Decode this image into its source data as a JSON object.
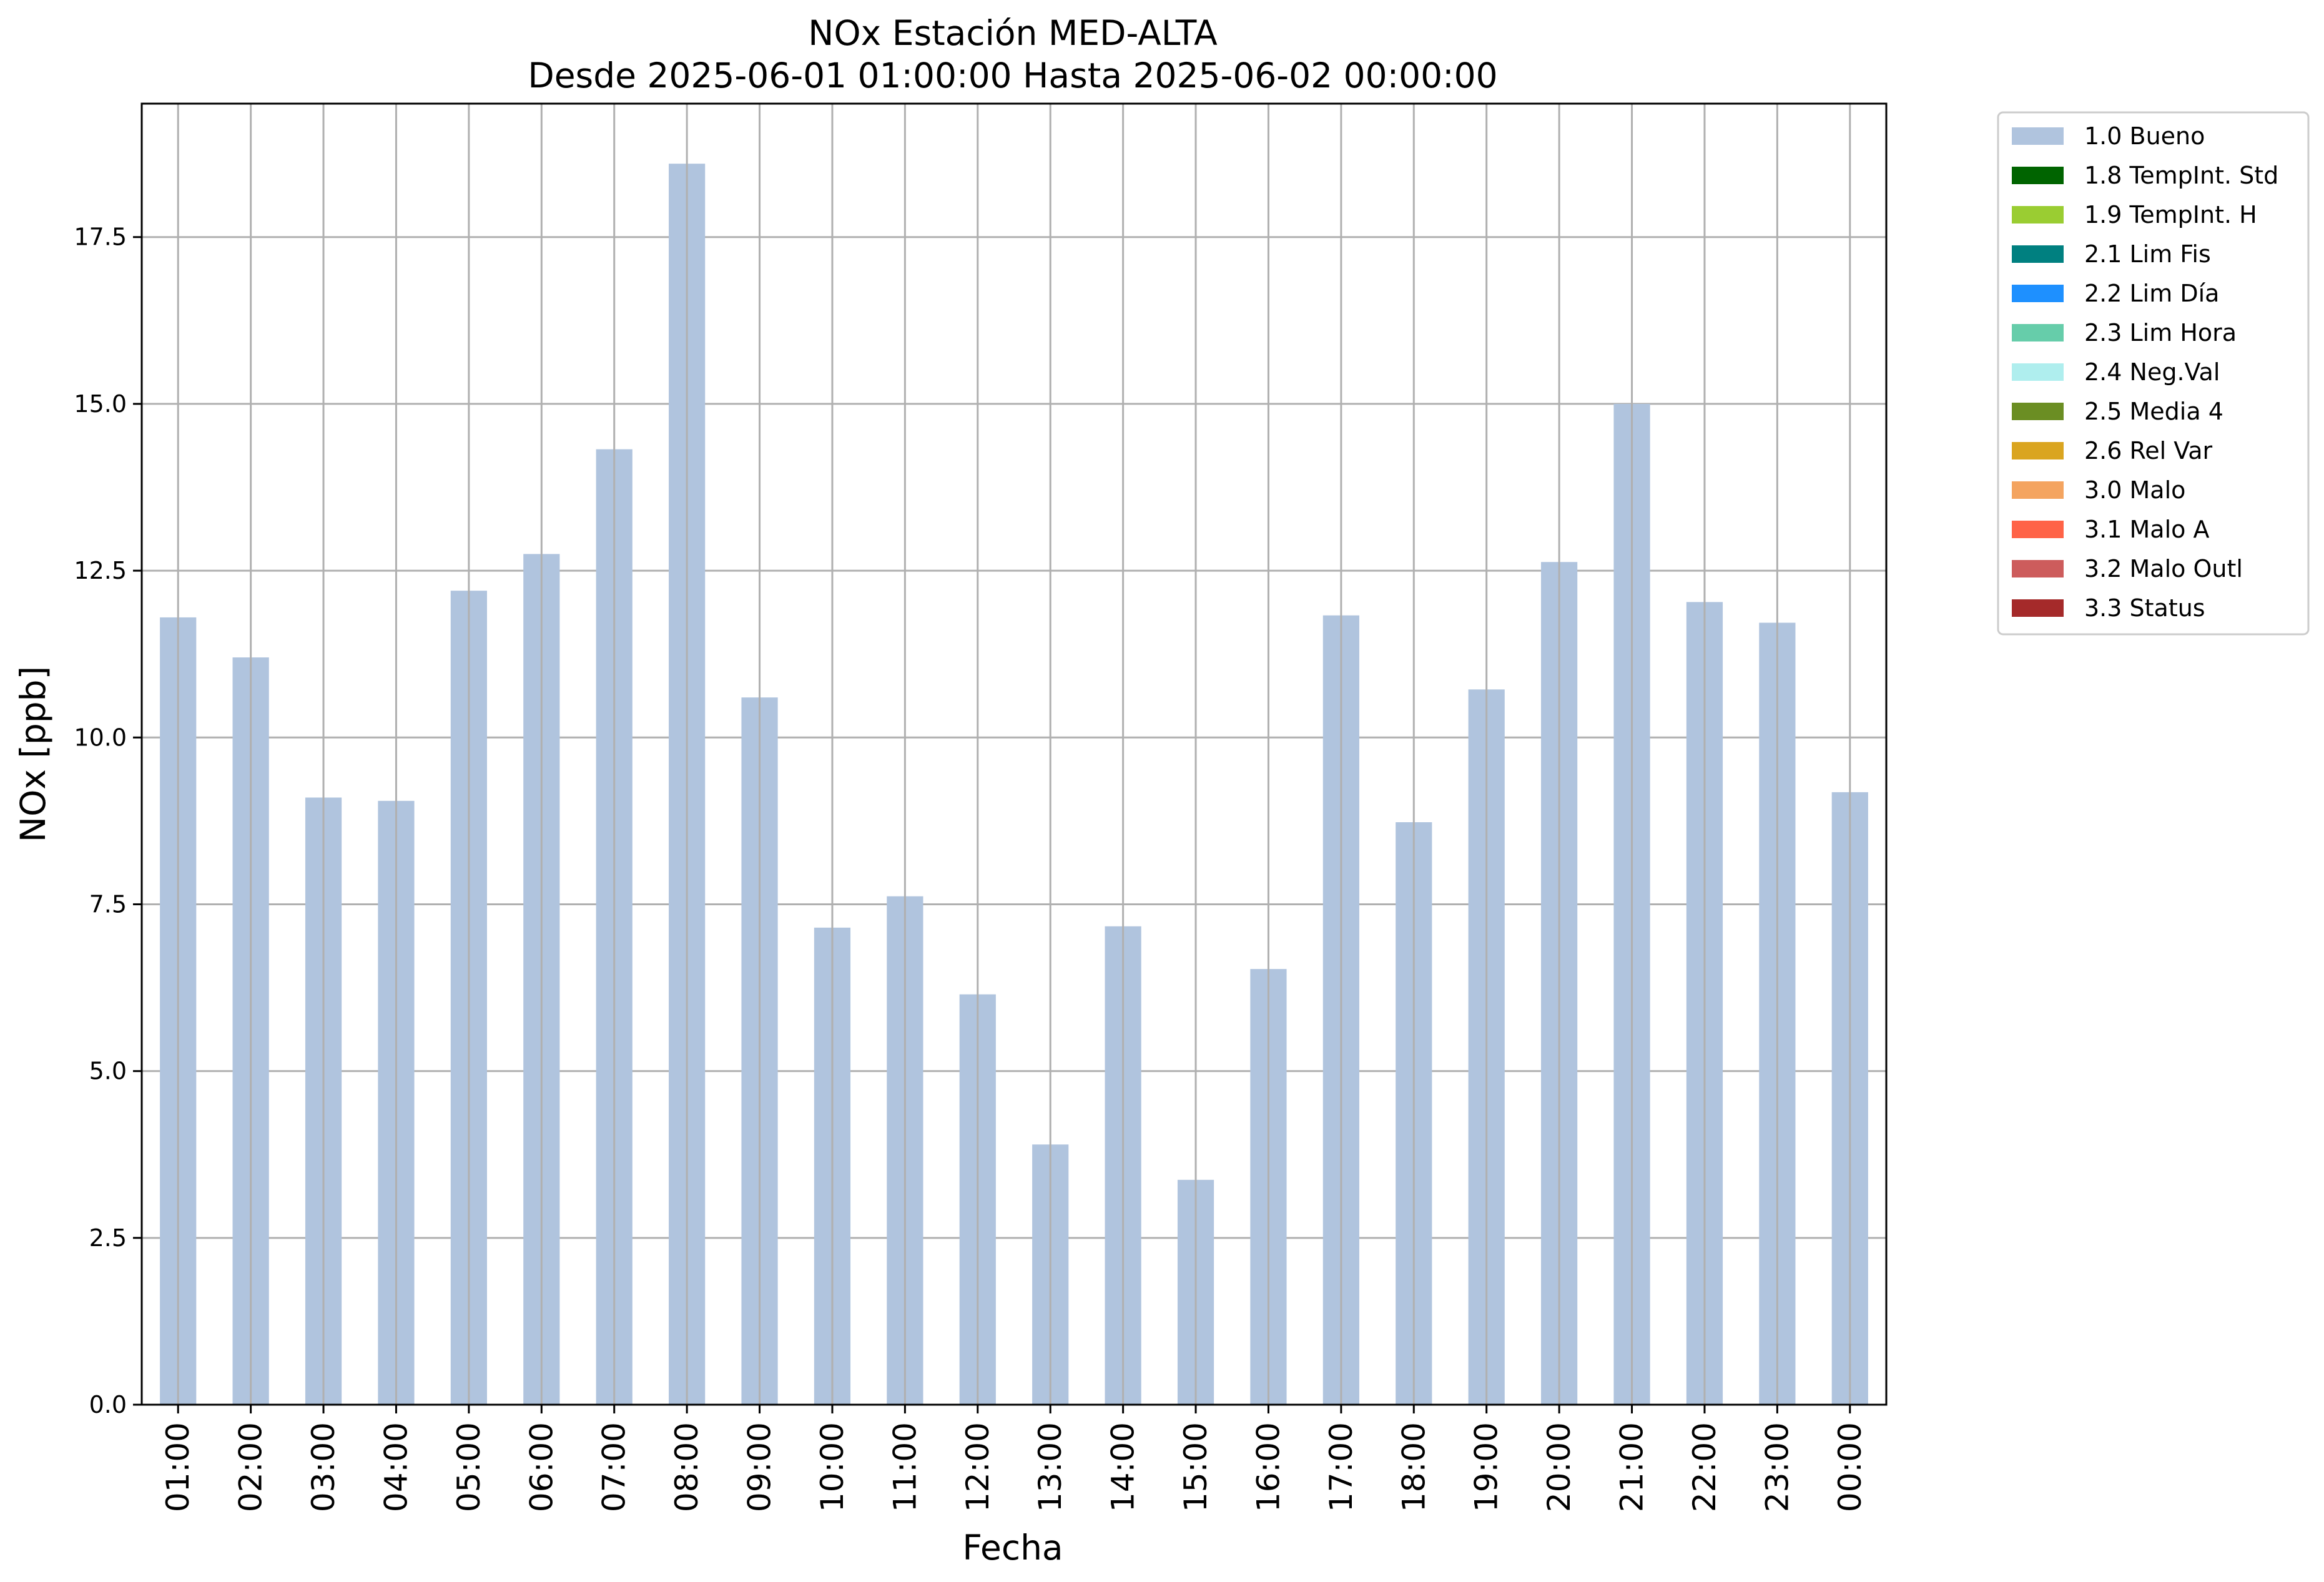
{
  "chart_data": {
    "type": "bar",
    "title": "NOx Estación MED-ALTA",
    "subtitle": "Desde 2025-06-01 01:00:00 Hasta 2025-06-02 00:00:00",
    "xlabel": "Fecha",
    "ylabel": "NOx [ppb]",
    "ylim": [
      0,
      19.5
    ],
    "yticks": [
      0.0,
      2.5,
      5.0,
      7.5,
      10.0,
      12.5,
      15.0,
      17.5
    ],
    "ytick_labels": [
      "0.0",
      "2.5",
      "5.0",
      "7.5",
      "10.0",
      "12.5",
      "15.0",
      "17.5"
    ],
    "grid": true,
    "legend_position": "outside-top-right",
    "categories": [
      "01:00",
      "02:00",
      "03:00",
      "04:00",
      "05:00",
      "06:00",
      "07:00",
      "08:00",
      "09:00",
      "10:00",
      "11:00",
      "12:00",
      "13:00",
      "14:00",
      "15:00",
      "16:00",
      "17:00",
      "18:00",
      "19:00",
      "20:00",
      "21:00",
      "22:00",
      "23:00",
      "00:00"
    ],
    "series": [
      {
        "name": "1.0 Bueno",
        "color": "#b0c4de",
        "values": [
          11.8,
          11.2,
          9.1,
          9.05,
          12.2,
          12.75,
          14.32,
          18.6,
          10.6,
          7.15,
          7.62,
          6.15,
          3.9,
          7.17,
          3.37,
          6.53,
          11.83,
          8.73,
          10.72,
          12.63,
          15.0,
          12.03,
          11.72,
          9.18
        ]
      }
    ],
    "legend": [
      {
        "label": "1.0 Bueno",
        "color": "#b0c4de"
      },
      {
        "label": "1.8 TempInt. Std",
        "color": "#006400"
      },
      {
        "label": "1.9 TempInt. H",
        "color": "#9acd32"
      },
      {
        "label": "2.1 Lim Fis",
        "color": "#008080"
      },
      {
        "label": "2.2 Lim Día",
        "color": "#1e90ff"
      },
      {
        "label": "2.3 Lim Hora",
        "color": "#66cdaa"
      },
      {
        "label": "2.4 Neg.Val",
        "color": "#afeeee"
      },
      {
        "label": "2.5 Media 4",
        "color": "#6b8e23"
      },
      {
        "label": "2.6 Rel Var",
        "color": "#daa520"
      },
      {
        "label": "3.0 Malo",
        "color": "#f4a460"
      },
      {
        "label": "3.1 Malo A",
        "color": "#ff6347"
      },
      {
        "label": "3.2 Malo Outl",
        "color": "#cd5c5c"
      },
      {
        "label": "3.3 Status",
        "color": "#a52a2a"
      }
    ]
  }
}
